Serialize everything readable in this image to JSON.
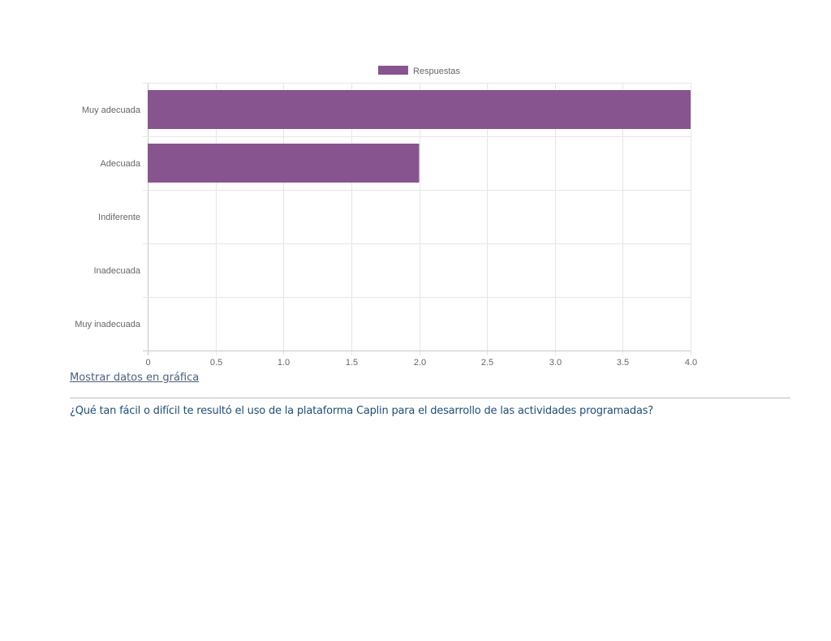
{
  "chart_data": {
    "type": "bar",
    "orientation": "horizontal",
    "categories": [
      "Muy adecuada",
      "Adecuada",
      "Indiferente",
      "Inadecuada",
      "Muy inadecuada"
    ],
    "series": [
      {
        "name": "Respuestas",
        "values": [
          4,
          2,
          0,
          0,
          0
        ]
      }
    ],
    "xlim": [
      0,
      4
    ],
    "x_ticks": [
      "0",
      "0.5",
      "1.0",
      "1.5",
      "2.0",
      "2.5",
      "3.0",
      "3.5",
      "4.0"
    ],
    "grid": true,
    "legend": "top-center",
    "colors": {
      "bar": "#87548f",
      "grid": "#e6e6e6",
      "axis": "#c8c8c8",
      "tick_text": "#666666"
    }
  },
  "links": {
    "show_chart_data": "Mostrar datos en gráfica"
  },
  "question": {
    "text": "¿Qué tan fácil o difícil te resultó el uso de la plataforma Caplin para el desarrollo de las actividades programadas?"
  }
}
